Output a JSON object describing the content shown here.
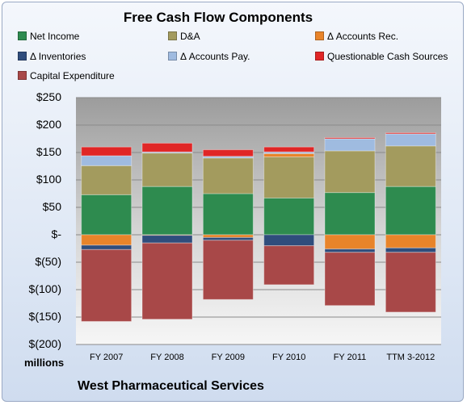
{
  "chart_data": {
    "type": "bar",
    "stacked": true,
    "title": "Free Cash Flow Components",
    "units": "millions",
    "categories": [
      "FY 2007",
      "FY 2008",
      "FY 2009",
      "FY 2010",
      "FY 2011",
      "TTM 3-2012"
    ],
    "ylim": [
      -200,
      250
    ],
    "yticks": [
      "$250",
      "$200",
      "$150",
      "$100",
      "$50",
      "$-",
      "$(50)",
      "$(100)",
      "$(150)",
      "$(200)"
    ],
    "ytick_values": [
      250,
      200,
      150,
      100,
      50,
      0,
      -50,
      -100,
      -150,
      -200
    ],
    "grid": true,
    "legend_position": "top",
    "series": [
      {
        "name": "Net Income",
        "color": "#2e8b4f",
        "values": [
          73,
          88,
          75,
          67,
          77,
          88
        ]
      },
      {
        "name": "D&A",
        "color": "#a39b5e",
        "values": [
          53,
          61,
          65,
          75,
          76,
          74
        ]
      },
      {
        "name": "Δ Accounts Rec.",
        "color": "#e8842a",
        "values": [
          -19,
          -1,
          -5,
          6,
          -26,
          -24
        ]
      },
      {
        "name": "Δ Inventories",
        "color": "#2f4d7c",
        "values": [
          -8,
          -14,
          -5,
          -20,
          -6,
          -8
        ]
      },
      {
        "name": "Δ Accounts Pay.",
        "color": "#9fbbe0",
        "values": [
          18,
          2,
          3,
          3,
          22,
          22
        ]
      },
      {
        "name": "Questionable Cash Sources",
        "color": "#e02626",
        "values": [
          16,
          16,
          12,
          9,
          2,
          2
        ]
      },
      {
        "name": "Capital Expenditure",
        "color": "#a84848",
        "values": [
          -131,
          -139,
          -108,
          -71,
          -97,
          -109
        ]
      }
    ]
  },
  "company": "West Pharmaceutical Services"
}
